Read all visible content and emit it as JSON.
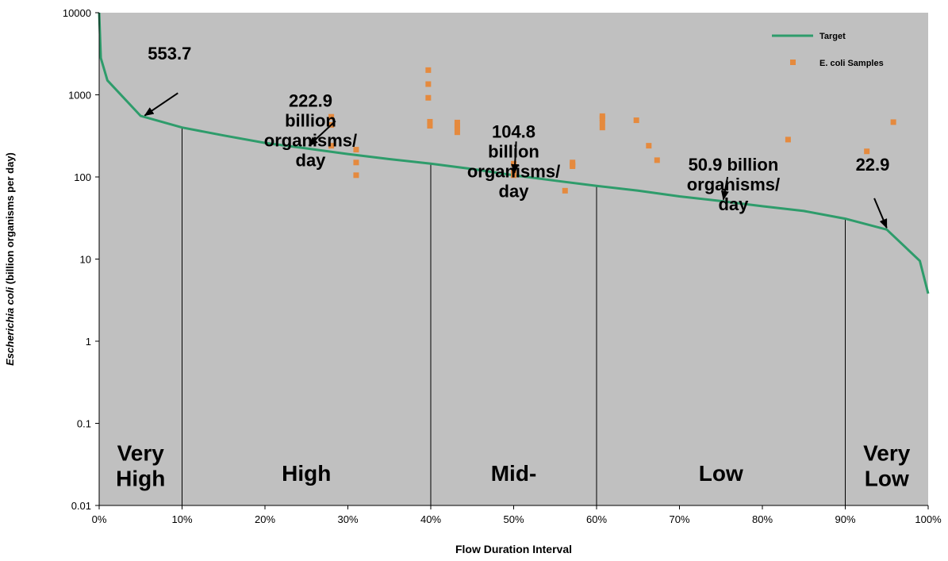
{
  "chart_data": {
    "type": "line",
    "title": "",
    "xlabel": "Flow Duration Interval",
    "ylabel_italic": "Escherichia coli",
    "ylabel_rest": " (billion organisms per day)",
    "y_scale": "log",
    "ylim": [
      0.01,
      10000
    ],
    "xlim": [
      0,
      100
    ],
    "x_ticks": [
      0,
      10,
      20,
      30,
      40,
      50,
      60,
      70,
      80,
      90,
      100
    ],
    "x_tick_labels": [
      "0%",
      "10%",
      "20%",
      "30%",
      "40%",
      "50%",
      "60%",
      "70%",
      "80%",
      "90%",
      "100%"
    ],
    "y_ticks": [
      0.01,
      0.1,
      1,
      10,
      100,
      1000,
      10000
    ],
    "y_tick_labels": [
      "0.01",
      "0.1",
      "1",
      "10",
      "100",
      "1000",
      "10000"
    ],
    "grid": false,
    "plot_background": "#c0c0c0",
    "legend_position": "top-right",
    "zone_dividers": [
      10,
      40,
      60,
      90
    ],
    "zone_labels": [
      {
        "lines": [
          "Very",
          "High"
        ],
        "x": 5,
        "y": 0.035
      },
      {
        "lines": [
          "High"
        ],
        "x": 25,
        "y": 0.02
      },
      {
        "lines": [
          "Mid-"
        ],
        "x": 50,
        "y": 0.02
      },
      {
        "lines": [
          "Low"
        ],
        "x": 75,
        "y": 0.02
      },
      {
        "lines": [
          "Very",
          "Low"
        ],
        "x": 95,
        "y": 0.035
      }
    ],
    "series": [
      {
        "name": "Target",
        "kind": "line",
        "color": "#2e9c6b",
        "points": [
          [
            0,
            10000
          ],
          [
            0.2,
            2800
          ],
          [
            1,
            1500
          ],
          [
            5,
            553.7
          ],
          [
            10,
            400
          ],
          [
            15,
            320
          ],
          [
            20,
            260
          ],
          [
            25,
            222.9
          ],
          [
            30,
            190
          ],
          [
            35,
            165
          ],
          [
            40,
            145
          ],
          [
            45,
            125
          ],
          [
            50,
            104.8
          ],
          [
            55,
            90
          ],
          [
            60,
            78
          ],
          [
            65,
            68
          ],
          [
            70,
            58
          ],
          [
            75,
            50.9
          ],
          [
            80,
            44
          ],
          [
            85,
            38.5
          ],
          [
            90,
            31
          ],
          [
            95,
            22.9
          ],
          [
            99,
            9.5
          ],
          [
            100,
            3.8
          ]
        ]
      },
      {
        "name": "E. coli Samples",
        "kind": "scatter",
        "color": "#e58a3e",
        "points": [
          [
            28,
            430
          ],
          [
            28,
            540
          ],
          [
            28,
            240
          ],
          [
            31,
            215
          ],
          [
            31,
            150
          ],
          [
            31,
            105
          ],
          [
            39.7,
            2000
          ],
          [
            39.7,
            1350
          ],
          [
            39.7,
            920
          ],
          [
            39.9,
            470
          ],
          [
            39.9,
            420
          ],
          [
            43.2,
            460
          ],
          [
            43.2,
            420
          ],
          [
            43.2,
            390
          ],
          [
            43.2,
            350
          ],
          [
            50,
            145
          ],
          [
            50,
            118
          ],
          [
            50,
            105
          ],
          [
            56.2,
            68
          ],
          [
            57.1,
            150
          ],
          [
            57.1,
            140
          ],
          [
            57.1,
            135
          ],
          [
            60.7,
            550
          ],
          [
            60.7,
            520
          ],
          [
            60.7,
            460
          ],
          [
            60.7,
            400
          ],
          [
            64.8,
            490
          ],
          [
            66.3,
            240
          ],
          [
            67.3,
            160
          ],
          [
            83.1,
            285
          ],
          [
            92.6,
            205
          ],
          [
            95.8,
            465
          ]
        ]
      }
    ],
    "annotations": [
      {
        "lines": [
          "553.7"
        ],
        "text_x": 8.5,
        "text_y": 2700,
        "arrow_from": [
          9.5,
          1050
        ],
        "arrow_to": [
          5.5,
          560
        ]
      },
      {
        "lines": [
          "222.9",
          "billion",
          "organisms/",
          "day"
        ],
        "text_x": 25.5,
        "text_y": 720,
        "arrow_from": [
          28.5,
          480
        ],
        "arrow_to": [
          25.3,
          240
        ]
      },
      {
        "lines": [
          "104.8",
          "billion",
          "organisms/",
          "day"
        ],
        "text_x": 50,
        "text_y": 300,
        "arrow_from": [
          50.3,
          270
        ],
        "arrow_to": [
          50.1,
          112
        ]
      },
      {
        "lines": [
          "50.9 billion",
          "organisms/",
          "day"
        ],
        "text_x": 76.5,
        "text_y": 120,
        "arrow_from": [
          75.8,
          100
        ],
        "arrow_to": [
          75.3,
          53
        ]
      },
      {
        "lines": [
          "22.9"
        ],
        "text_x": 93.3,
        "text_y": 120,
        "arrow_from": [
          93.5,
          55
        ],
        "arrow_to": [
          95,
          24
        ]
      }
    ]
  }
}
